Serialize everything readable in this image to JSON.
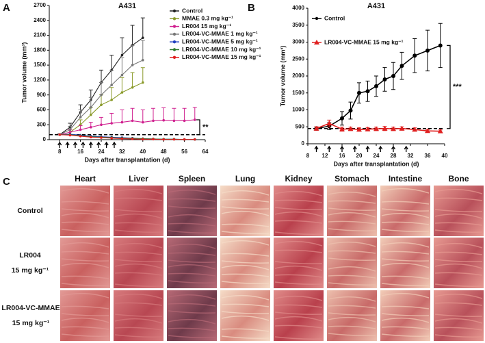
{
  "chart_data": [
    {
      "type": "line",
      "panel": "A",
      "title": "A431",
      "y_label": "Tumor volume (mm³)",
      "x_label": "Days after transplantation (d)",
      "x": [
        8,
        12,
        16,
        20,
        24,
        28,
        32,
        36,
        40,
        44,
        48,
        52,
        56,
        60
      ],
      "xlim": [
        4,
        64
      ],
      "xticks": [
        8,
        16,
        24,
        32,
        40,
        48,
        56,
        64
      ],
      "ylim": [
        0,
        2700
      ],
      "yticks": [
        0,
        300,
        600,
        900,
        1200,
        1500,
        1800,
        2100,
        2400,
        2700
      ],
      "series": [
        {
          "name": "Control",
          "color": "#222222",
          "marker": "circle",
          "values": [
            100,
            250,
            550,
            800,
            1150,
            1400,
            1700,
            1900,
            2050,
            null,
            null,
            null,
            null,
            null
          ],
          "errors": [
            20,
            80,
            150,
            200,
            250,
            300,
            350,
            400,
            400,
            null,
            null,
            null,
            null,
            null
          ]
        },
        {
          "name": "MMAE 0.3 mg kg⁻¹",
          "color": "#8a9a2a",
          "marker": "circle",
          "values": [
            100,
            150,
            300,
            500,
            700,
            800,
            950,
            1050,
            1150,
            null,
            null,
            null,
            null,
            null
          ],
          "errors": [
            20,
            50,
            100,
            150,
            200,
            250,
            300,
            300,
            300,
            null,
            null,
            null,
            null,
            null
          ]
        },
        {
          "name": "LR004 15 mg kg⁻¹",
          "color": "#d0208f",
          "marker": "circle",
          "values": [
            100,
            150,
            200,
            250,
            300,
            330,
            350,
            380,
            350,
            380,
            390,
            380,
            380,
            400
          ],
          "errors": [
            20,
            50,
            80,
            100,
            150,
            200,
            250,
            250,
            250,
            250,
            250,
            250,
            250,
            250
          ]
        },
        {
          "name": "LR004-VC-MMAE 1 mg kg⁻¹",
          "color": "#777777",
          "marker": "circle",
          "values": [
            100,
            200,
            450,
            650,
            900,
            1100,
            1300,
            1500,
            1600,
            null,
            null,
            null,
            null,
            null
          ],
          "errors": [
            20,
            70,
            150,
            200,
            250,
            300,
            350,
            400,
            400,
            null,
            null,
            null,
            null,
            null
          ]
        },
        {
          "name": "LR004-VC-MMAE 5 mg kg⁻¹",
          "color": "#1f3fbf",
          "marker": "circle",
          "values": [
            100,
            110,
            90,
            70,
            60,
            50,
            40,
            30,
            20,
            15,
            10,
            10,
            5,
            5
          ]
        },
        {
          "name": "LR004-VC-MMAE 10 mg kg⁻¹",
          "color": "#2a7a2a",
          "marker": "circle",
          "values": [
            100,
            100,
            80,
            60,
            50,
            40,
            30,
            25,
            20,
            15,
            10,
            10,
            5,
            5
          ]
        },
        {
          "name": "LR004-VC-MMAE 15 mg kg⁻¹",
          "color": "#e02020",
          "marker": "circle",
          "values": [
            100,
            90,
            70,
            50,
            40,
            30,
            20,
            15,
            10,
            10,
            5,
            5,
            5,
            5
          ]
        }
      ],
      "reference_line": 100,
      "dose_days": [
        8,
        11,
        14,
        17,
        20,
        23,
        26,
        29
      ],
      "significance": {
        "label": "**",
        "between": [
          400,
          100
        ]
      }
    },
    {
      "type": "line",
      "panel": "B",
      "title": "A431",
      "y_label": "Tumor volume (mm³)",
      "x_label": "Days after transplantation (d)",
      "x": [
        10,
        13,
        16,
        18,
        20,
        22,
        24,
        26,
        28,
        30,
        33,
        36,
        39
      ],
      "xlim": [
        8,
        40
      ],
      "xticks": [
        8,
        12,
        16,
        20,
        24,
        28,
        32,
        36,
        40
      ],
      "ylim": [
        0,
        4000
      ],
      "yticks": [
        0,
        500,
        1000,
        1500,
        2000,
        2500,
        3000,
        3500,
        4000
      ],
      "series": [
        {
          "name": "Control",
          "color": "#000000",
          "marker": "circle",
          "values": [
            450,
            520,
            750,
            980,
            1500,
            1550,
            1700,
            1900,
            2000,
            2300,
            2600,
            2750,
            2900
          ],
          "errors": [
            50,
            100,
            200,
            250,
            300,
            300,
            300,
            350,
            400,
            400,
            500,
            600,
            650
          ]
        },
        {
          "name": "LR004-VC-MMAE 15 mg kg⁻¹",
          "color": "#e02020",
          "marker": "triangle",
          "values": [
            450,
            600,
            430,
            440,
            420,
            430,
            440,
            450,
            440,
            450,
            420,
            380,
            370
          ],
          "errors": [
            50,
            100,
            60,
            50,
            50,
            50,
            50,
            60,
            50,
            50,
            50,
            40,
            40
          ]
        }
      ],
      "reference_line": 450,
      "dose_days": [
        10,
        13,
        16,
        19,
        22,
        25,
        28,
        31
      ],
      "significance": {
        "label": "***",
        "between": [
          2900,
          450
        ]
      }
    }
  ],
  "histology": {
    "panel": "C",
    "columns": [
      "Heart",
      "Liver",
      "Spleen",
      "Lung",
      "Kidney",
      "Stomach",
      "Intestine",
      "Bone"
    ],
    "rows": [
      {
        "lines": [
          "Control"
        ]
      },
      {
        "lines": [
          "LR004",
          "15 mg kg⁻¹"
        ]
      },
      {
        "lines": [
          "LR004-VC-MMAE",
          "15 mg kg⁻¹"
        ]
      }
    ]
  }
}
